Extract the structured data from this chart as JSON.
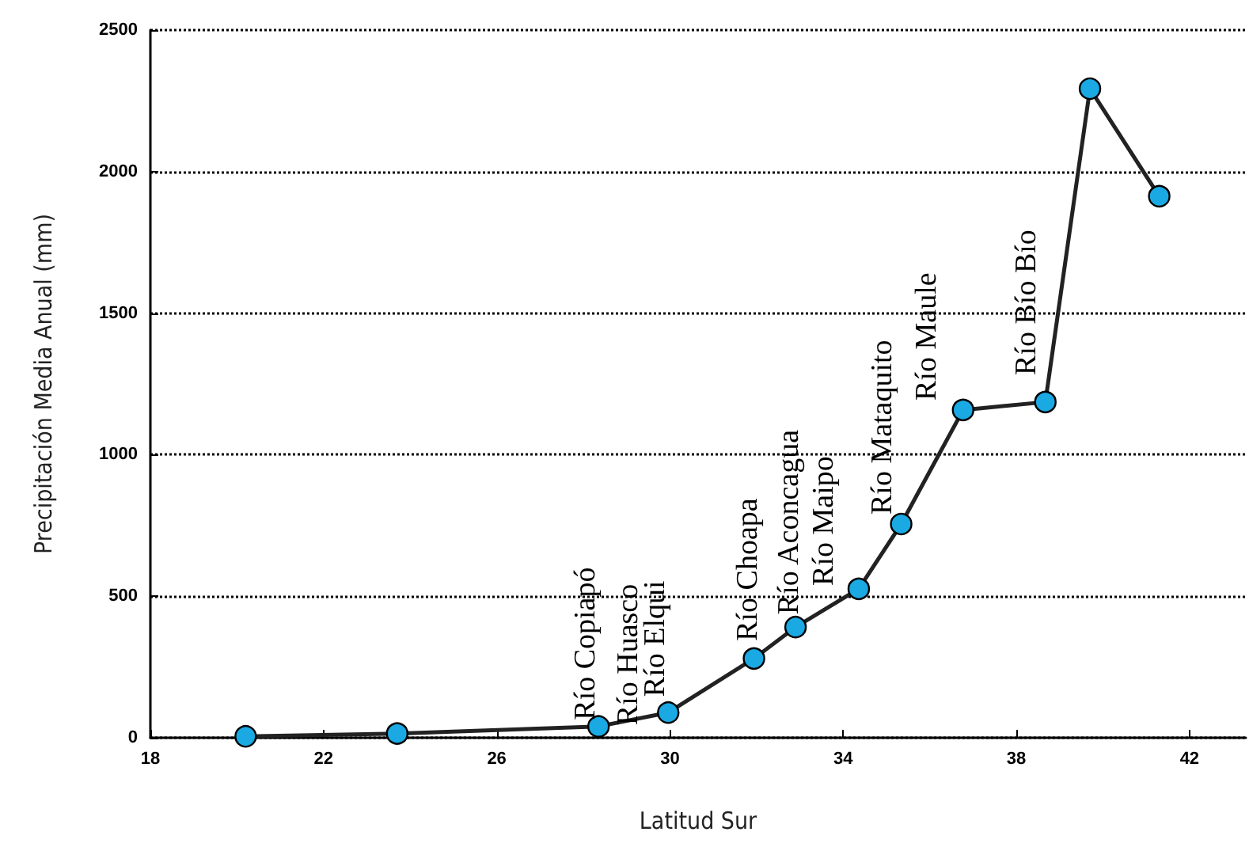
{
  "chart_data": {
    "type": "line",
    "xlabel": "Latitud Sur",
    "ylabel": "Precipitación Media Anual (mm)",
    "x": [
      20.2,
      23.7,
      28.35,
      29.96,
      31.94,
      32.9,
      34.36,
      35.34,
      36.77,
      38.67,
      39.7,
      41.3
    ],
    "series": [
      {
        "color": "#1aa9e2",
        "values": [
          5,
          15,
          40,
          89,
          280,
          391,
          526,
          755,
          1158,
          1186,
          2293,
          1913
        ]
      }
    ],
    "xlim": [
      18,
      43.3
    ],
    "xticks": [
      18,
      22,
      26,
      30,
      34,
      38,
      42
    ],
    "ylim": [
      0,
      2500
    ],
    "yticks": [
      0,
      500,
      1000,
      1500,
      2000,
      2500
    ],
    "grid": "y",
    "marker": "circle",
    "line_style": "solid",
    "annotations": [
      {
        "text": "Río Copiapó",
        "x": 28.35,
        "y": 40
      },
      {
        "text": "Río Huasco",
        "x": 29.96,
        "y": 89
      },
      {
        "text": "Río Elqui",
        "x": 29.96,
        "y": 89
      },
      {
        "text": "Río Choapa",
        "x": 31.94,
        "y": 280
      },
      {
        "text": "Río Aconcagua",
        "x": 32.9,
        "y": 391
      },
      {
        "text": "Río Maipo",
        "x": 34.36,
        "y": 526
      },
      {
        "text": "Río Mataquito",
        "x": 35.34,
        "y": 755
      },
      {
        "text": "Río Maule",
        "x": 36.77,
        "y": 1158
      },
      {
        "text": "Río Bío Bío",
        "x": 38.67,
        "y": 1186
      }
    ]
  }
}
